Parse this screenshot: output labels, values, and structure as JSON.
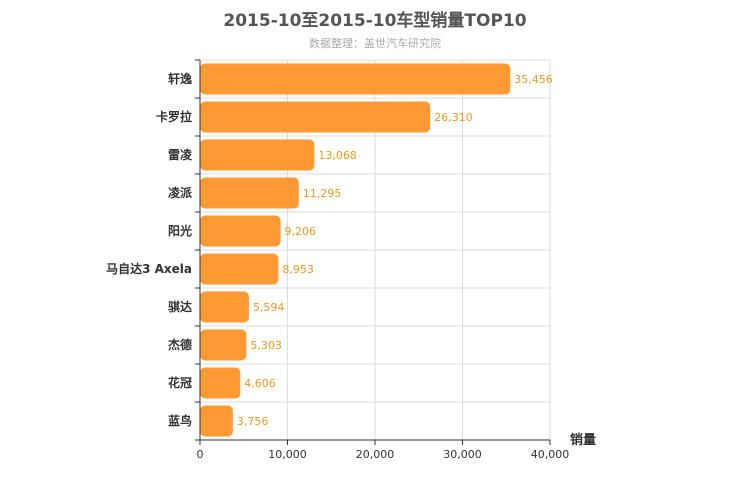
{
  "chart_data": {
    "type": "bar",
    "orientation": "horizontal",
    "title": "2015-10至2015-10车型销量TOP10",
    "subtitle": "数据整理：盖世汽车研究院",
    "xlabel": "销量",
    "categories": [
      "轩逸",
      "卡罗拉",
      "雷凌",
      "凌派",
      "阳光",
      "马自达3 Axela",
      "骐达",
      "杰德",
      "花冠",
      "蓝鸟"
    ],
    "values": [
      35456,
      26310,
      13068,
      11295,
      9206,
      8953,
      5594,
      5303,
      4606,
      3756
    ],
    "value_labels": [
      "35,456",
      "26,310",
      "13,068",
      "11,295",
      "9,206",
      "8,953",
      "5,594",
      "5,303",
      "4,606",
      "3,756"
    ],
    "xlim": [
      0,
      40000
    ],
    "xticks": [
      0,
      10000,
      20000,
      30000,
      40000
    ],
    "xtick_labels": [
      "0",
      "10,000",
      "20,000",
      "30,000",
      "40,000"
    ],
    "grid": true,
    "legend": "none",
    "bar_color": "#ff9933",
    "label_color": "#ee9922"
  }
}
